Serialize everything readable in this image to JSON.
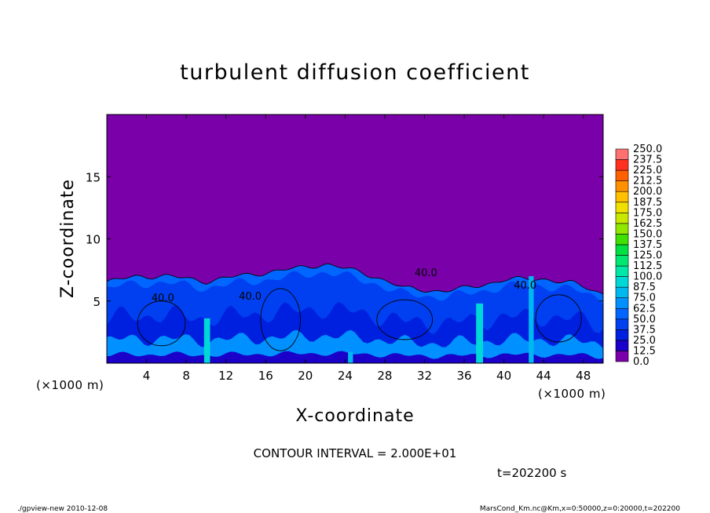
{
  "chart_data": {
    "type": "heatmap",
    "title": "turbulent diffusion coefficient",
    "xlabel": "X-coordinate",
    "ylabel": "Z-coordinate",
    "x_unit_label": "(×1000 m)",
    "y_unit_label": "(×1000 m)",
    "xlim": [
      0,
      50
    ],
    "ylim": [
      0,
      20
    ],
    "x_ticks": [
      4,
      8,
      12,
      16,
      20,
      24,
      28,
      32,
      36,
      40,
      44,
      48
    ],
    "y_ticks": [
      5,
      10,
      15
    ],
    "background_value": 0.0,
    "colorbar": {
      "levels": [
        "0.0",
        "12.5",
        "25.0",
        "37.5",
        "50.0",
        "62.5",
        "75.0",
        "87.5",
        "100.0",
        "112.5",
        "125.0",
        "137.5",
        "150.0",
        "162.5",
        "175.0",
        "187.5",
        "200.0",
        "212.5",
        "225.0",
        "237.5",
        "250.0"
      ],
      "colors": [
        "#7a00aa",
        "#1a00c8",
        "#0020e0",
        "#0040f0",
        "#0066ff",
        "#0090ff",
        "#00b8f0",
        "#00d8d8",
        "#00e8a8",
        "#00e870",
        "#00e040",
        "#40e000",
        "#90e800",
        "#c8e800",
        "#f0e000",
        "#ffc000",
        "#ff9000",
        "#ff6000",
        "#ff3020",
        "#ff7070"
      ]
    },
    "contour_labels": [
      "40.0",
      "40.0",
      "40.0",
      "40.0"
    ],
    "convective_layer_top_km": [
      6.5,
      7.0,
      7.0,
      6.6,
      7.2,
      7.6,
      8.0,
      7.0,
      6.0,
      5.8,
      6.0,
      6.7,
      6.8,
      6.4,
      5.6
    ],
    "layer_top_x_km": [
      0,
      3,
      6,
      10,
      15,
      19,
      22,
      27,
      30,
      34,
      36,
      40,
      44,
      47,
      50
    ]
  },
  "contour_interval_text": "CONTOUR INTERVAL = 2.000E+01",
  "time_text": "t=202200 s",
  "footer_left": "./gpview-new   2010-12-08",
  "footer_right": "MarsCond_Km.nc@Km,x=0:50000,z=0:20000,t=202200"
}
